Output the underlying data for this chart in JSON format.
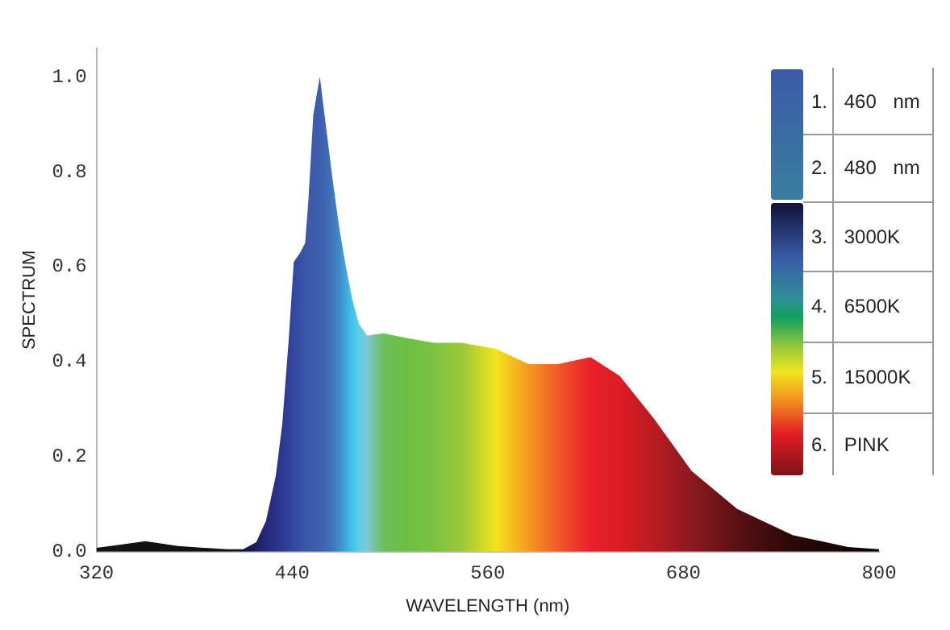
{
  "chart_data": [
    {
      "type": "area",
      "xlabel": "WAVELENGTH (nm)",
      "ylabel": "SPECTRUM",
      "xlim": [
        320,
        800
      ],
      "xticks": [
        320,
        440,
        560,
        680,
        800
      ],
      "ylim": [
        0,
        1.06
      ],
      "yticks": [
        {
          "value": 0,
          "label": "0.0"
        },
        {
          "value": 0.2,
          "label": "0.2"
        },
        {
          "value": 0.4,
          "label": "0.4"
        },
        {
          "value": 0.6,
          "label": "0.6"
        },
        {
          "value": 0.8,
          "label": "0.8"
        },
        {
          "value": 1,
          "label": "1.0"
        }
      ],
      "grid": false,
      "legend": false,
      "x": [
        320,
        335,
        350,
        370,
        400,
        410,
        418,
        424,
        430,
        434,
        438,
        441,
        445,
        448,
        450,
        453,
        457,
        461,
        465,
        469,
        473,
        477,
        481,
        486,
        496,
        510,
        527,
        544,
        565,
        585,
        603,
        623,
        641,
        662,
        685,
        713,
        747,
        781,
        800
      ],
      "series": [
        {
          "values": [
            0.008,
            0.015,
            0.022,
            0.012,
            0.005,
            0.005,
            0.02,
            0.065,
            0.16,
            0.27,
            0.45,
            0.61,
            0.63,
            0.65,
            0.74,
            0.92,
            1.0,
            0.89,
            0.78,
            0.68,
            0.6,
            0.53,
            0.48,
            0.455,
            0.46,
            0.45,
            0.44,
            0.44,
            0.427,
            0.395,
            0.395,
            0.41,
            0.37,
            0.28,
            0.17,
            0.09,
            0.035,
            0.01,
            0.005
          ],
          "colors": [
            "#111111",
            "#111111",
            "#111111",
            "#111111",
            "#111111",
            "#15153a",
            "#1c1f60",
            "#232a7a",
            "#2a3288",
            "#2d3a92",
            "#31409a",
            "#3448a0",
            "#3850a6",
            "#3a55a8",
            "#3b58aa",
            "#3c5cab",
            "#3d5fad",
            "#3e68b2",
            "#3f78bd",
            "#3f8cc9",
            "#40a6dc",
            "#41c4ec",
            "#5fcfe6",
            "#7cc8d4",
            "#6cbf5a",
            "#6cbf45",
            "#7cc242",
            "#9ac83a",
            "#f2e41c",
            "#f59a20",
            "#ef5a28",
            "#e8202a",
            "#dc1c24",
            "#b81c22",
            "#8a1a1e",
            "#5a1014",
            "#2a0808",
            "#140404",
            "#0a0202"
          ]
        }
      ]
    },
    {
      "type": "other",
      "annotations": [
        "1. 460 nm",
        "2. 480 nm",
        "3. 3000K",
        "4. 6500K",
        "5. 15000K",
        "6. PINK"
      ]
    }
  ]
}
